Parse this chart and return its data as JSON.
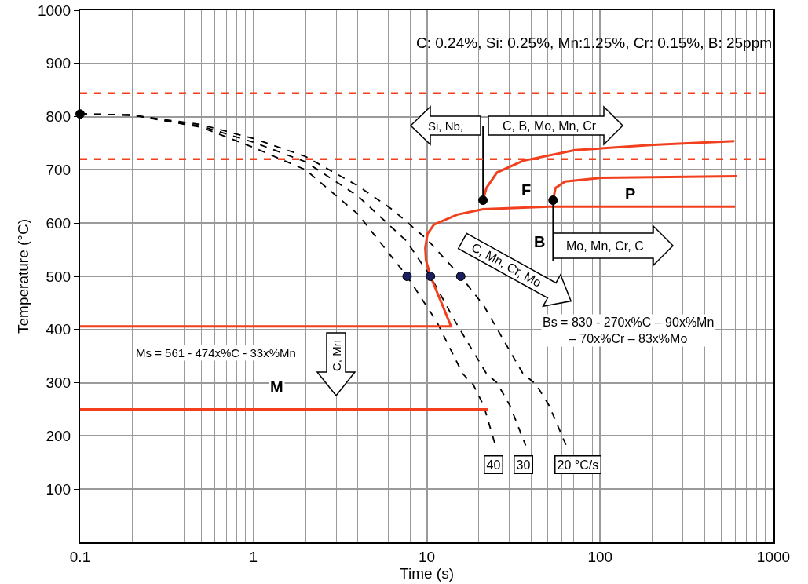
{
  "chart_data": {
    "type": "line",
    "xlabel": "Time (s)",
    "ylabel": "Temperature (°C)",
    "log": "x",
    "xlim": [
      0.1,
      1000
    ],
    "ylim": [
      0,
      1000
    ],
    "xticks": [
      0.1,
      1,
      10,
      100,
      1000
    ],
    "yticks": [
      100,
      200,
      300,
      400,
      500,
      600,
      700,
      800,
      900,
      1000
    ],
    "grid": true,
    "legend": "bottom",
    "series": [
      {
        "name": "40",
        "color": "#000000",
        "line_style": "dashed",
        "marker": "none",
        "x": [
          0.1,
          0.2,
          0.5,
          1,
          2,
          4,
          7.7,
          11.4,
          16.1,
          18.5,
          21.3,
          24.9
        ],
        "values": [
          805,
          803,
          780,
          742,
          700,
          617,
          500,
          415,
          317,
          297,
          257,
          182
        ]
      },
      {
        "name": "30",
        "color": "#000000",
        "line_style": "dashed",
        "marker": "none",
        "x": [
          0.1,
          0.2,
          0.5,
          1,
          2,
          4,
          7.6,
          10.5,
          14.6,
          22.1,
          25.4,
          30.2,
          37.2
        ],
        "values": [
          805,
          803,
          782,
          752,
          715,
          651,
          567,
          500,
          415,
          317,
          300,
          257,
          182
        ]
      },
      {
        "name": "20 °C/s",
        "color": "#000000",
        "line_style": "dashed",
        "marker": "none",
        "x": [
          0.1,
          0.2,
          0.5,
          1,
          2,
          4,
          6.3,
          10,
          15.7,
          21.3,
          35.9,
          42.7,
          50.8,
          63.7
        ],
        "values": [
          805,
          803,
          785,
          759,
          725,
          670,
          626,
          570,
          500,
          445,
          317,
          297,
          257,
          182
        ]
      },
      {
        "color": "#f2401f",
        "line_style": "solid",
        "marker": "none",
        "x": [
          0.1,
          13.8,
          12.2,
          10.5,
          9.9,
          9.8,
          10.1,
          11,
          15,
          21.1,
          50.8,
          600
        ],
        "values": [
          406,
          406,
          449,
          500,
          530,
          553,
          580,
          597,
          616,
          626,
          631,
          631
        ]
      },
      {
        "color": "#f2401f",
        "line_style": "solid",
        "marker": "none",
        "x": [
          0.1,
          22.5
        ],
        "values": [
          250,
          250
        ]
      },
      {
        "color": "#f2401f",
        "line_style": "solid",
        "marker": "none",
        "x": [
          21.1,
          22.1,
          25.4,
          35.9,
          71.6,
          203,
          595
        ],
        "values": [
          643,
          666,
          695,
          717,
          737,
          747,
          754
        ]
      },
      {
        "color": "#f2401f",
        "line_style": "solid",
        "marker": "none",
        "x": [
          53.5,
          55.3,
          62.8,
          102,
          615
        ],
        "values": [
          643,
          666,
          678,
          685,
          688
        ]
      },
      {
        "color": "#000000",
        "line_style": "solid",
        "marker": "none",
        "x": [
          21.1,
          21.1
        ],
        "values": [
          643,
          783
        ]
      },
      {
        "color": "#000000",
        "line_style": "solid",
        "marker": "none",
        "x": [
          53.5,
          53.5
        ],
        "values": [
          643,
          528
        ]
      },
      {
        "type": "scatter",
        "color": "#000000",
        "marker": "circle",
        "x": [
          0.1,
          21.1,
          53.5
        ],
        "values": [
          805,
          643,
          643
        ]
      },
      {
        "type": "scatter",
        "color": "#1b1f5e",
        "marker": "circle",
        "x": [
          7.7,
          10.5,
          15.7
        ],
        "values": [
          500,
          500,
          500
        ]
      }
    ],
    "ref_lines": [
      {
        "axis": "y",
        "value": 844,
        "color": "#f2401f",
        "line_style": "dashed"
      },
      {
        "axis": "y",
        "value": 720,
        "color": "#f2401f",
        "line_style": "dashed"
      }
    ],
    "annotations": [
      "C: 0.24%, Si: 0.25%, Mn:1.25%, Cr: 0.15%, B: 25ppm",
      "Si, Nb,",
      "C, B, Mo, Mn, Cr",
      "F",
      "P",
      "B",
      "Mo, Mn, Cr, C",
      "C, Mn, Cr, Mo",
      "Bs = 830 - 270x%C – 90x%Mn\n– 70x%Cr – 83x%Mo",
      "Ms = 561 - 474x%C - 33x%Mn",
      "C, Mn",
      "M"
    ]
  }
}
